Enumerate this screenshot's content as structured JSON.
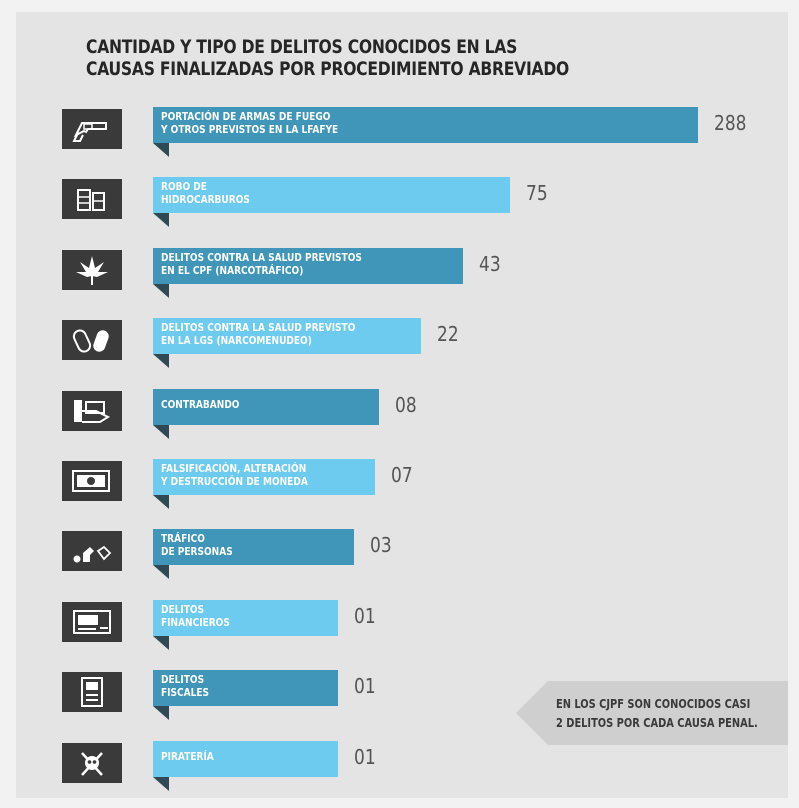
{
  "title": {
    "line1": "CANTIDAD Y TIPO DE DELITOS CONOCIDOS EN LAS",
    "line2": "CAUSAS FINALIZADAS POR PROCEDIMIENTO ABREVIADO"
  },
  "colors": {
    "bar_dark": "#3f96b8",
    "bar_light": "#6ccbef",
    "icon_bg": "#3a3a3a",
    "fold": "#2f4a55",
    "note_bg": "#cfcfcf"
  },
  "chart_data": {
    "type": "bar",
    "orientation": "horizontal",
    "title": "CANTIDAD Y TIPO DE DELITOS CONOCIDOS EN LAS CAUSAS FINALIZADAS POR PROCEDIMIENTO ABREVIADO",
    "categories": [
      "PORTACIÓN DE ARMAS DE FUEGO Y OTROS PREVISTOS EN LA LFAFYE",
      "ROBO DE HIDROCARBUROS",
      "DELITOS CONTRA LA SALUD PREVISTOS EN EL CPF (NARCOTRÁFICO)",
      "DELITOS CONTRA LA SALUD PREVISTO EN LA LGS (NARCOMENUDEO)",
      "CONTRABANDO",
      "FALSIFICACIÓN, ALTERACIÓN Y DESTRUCCIÓN DE MONEDA",
      "TRÁFICO DE PERSONAS",
      "DELITOS FINANCIEROS",
      "DELITOS FISCALES",
      "PIRATERÍA"
    ],
    "values": [
      288,
      75,
      43,
      22,
      8,
      7,
      3,
      1,
      1,
      1
    ],
    "value_labels": [
      "288",
      "75",
      "43",
      "22",
      "08",
      "07",
      "03",
      "01",
      "01",
      "01"
    ],
    "labels": [
      [
        "PORTACIÓN DE ARMAS DE FUEGO",
        "Y OTROS PREVISTOS EN LA LFAFYE"
      ],
      [
        "ROBO DE",
        "HIDROCARBUROS"
      ],
      [
        "DELITOS CONTRA LA SALUD PREVISTOS",
        "EN EL CPF (NARCOTRÁFICO)"
      ],
      [
        "DELITOS CONTRA LA SALUD PREVISTO",
        "EN LA LGS (NARCOMENUDEO)"
      ],
      [
        "CONTRABANDO"
      ],
      [
        "FALSIFICACIÓN, ALTERACIÓN",
        "Y DESTRUCCIÓN DE MONEDA"
      ],
      [
        "TRÁFICO",
        "DE PERSONAS"
      ],
      [
        "DELITOS",
        "FINANCIEROS"
      ],
      [
        "DELITOS",
        "FISCALES"
      ],
      [
        "PIRATERÍA"
      ]
    ],
    "icons": [
      "revolver-icon",
      "oil-barrels-icon",
      "cannabis-leaf-icon",
      "pills-icon",
      "hand-with-cash-icon",
      "banknote-icon",
      "person-with-tag-icon",
      "money-document-icon",
      "tax-document-icon",
      "skull-crossbones-icon"
    ],
    "bar_styles": [
      "dark",
      "light",
      "dark",
      "light",
      "dark",
      "light",
      "dark",
      "light",
      "dark",
      "light"
    ]
  },
  "note": {
    "line1": "EN LOS CJPF SON CONOCIDOS CASI",
    "line2": "2 DELITOS POR CADA CAUSA PENAL."
  }
}
